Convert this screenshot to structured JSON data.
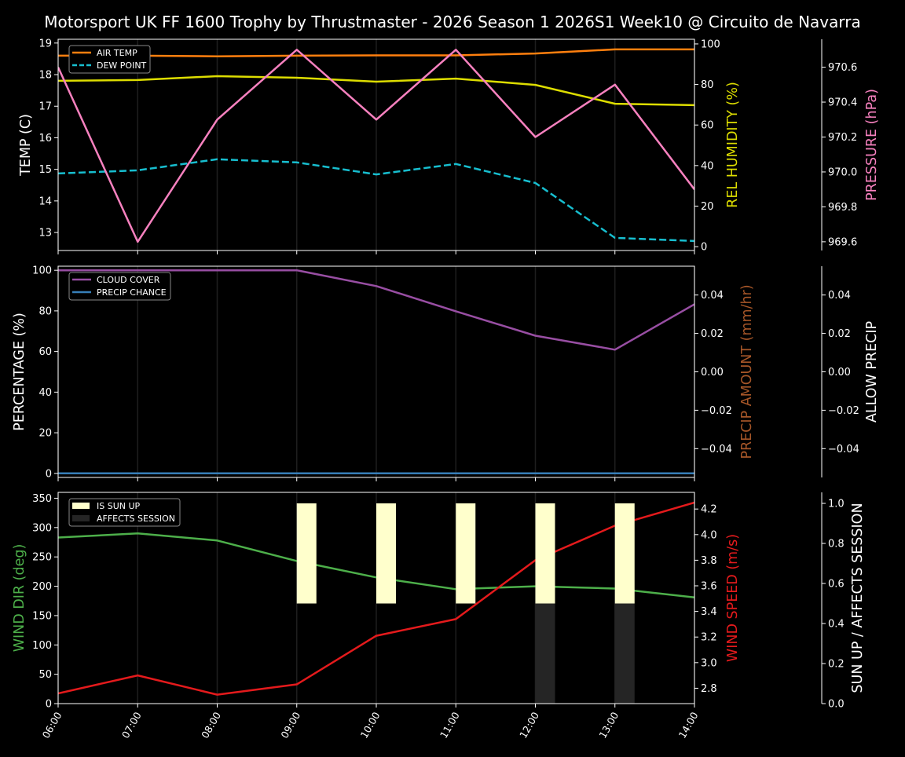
{
  "title": "Motorsport UK FF 1600 Trophy by Thrustmaster - 2026 Season 1 2026S1 Week10 @ Circuito de Navarra",
  "colors": {
    "background": "#000000",
    "foreground": "#ffffff",
    "air_temp": "#ff7f0e",
    "dew_point": "#17becf",
    "humidity": "#dddd00",
    "pressure": "#f781bf",
    "cloud": "#984ea3",
    "precip_chance": "#377eb8",
    "precip_amount": "#a65628",
    "wind_dir": "#4daf4a",
    "wind_speed": "#e41a1c",
    "sun_up": "#ffffcc",
    "affects_session": "#252525"
  },
  "chart_data": [
    {
      "type": "line",
      "x": [
        "06:00",
        "07:00",
        "08:00",
        "09:00",
        "10:00",
        "11:00",
        "12:00",
        "13:00",
        "14:00"
      ],
      "axes": [
        {
          "side": "left",
          "label": "TEMP (C)",
          "label_color": "#ffffff",
          "ylim": [
            12.43,
            19.12
          ],
          "ticks": [
            13,
            14,
            15,
            16,
            17,
            18,
            19
          ],
          "series": [
            {
              "name": "AIR TEMP",
              "color": "#ff7f0e",
              "dash": false,
              "values": [
                18.6,
                18.6,
                18.58,
                18.6,
                18.61,
                18.61,
                18.67,
                18.8,
                18.8
              ]
            },
            {
              "name": "DEW POINT",
              "color": "#17becf",
              "dash": true,
              "values": [
                14.87,
                14.97,
                15.32,
                15.22,
                14.84,
                15.17,
                14.57,
                12.83,
                12.73
              ]
            }
          ]
        },
        {
          "side": "right",
          "label": "REL HUMIDITY (%)",
          "label_color": "#dddd00",
          "ylim": [
            -1.9,
            102.3
          ],
          "ticks": [
            0,
            20,
            40,
            60,
            80,
            100
          ],
          "series": [
            {
              "color": "#dddd00",
              "dash": false,
              "values": [
                81.8,
                82.2,
                84.1,
                83.3,
                81.4,
                82.9,
                79.8,
                70.5,
                69.8
              ]
            }
          ]
        },
        {
          "side": "right2",
          "label": "PRESSURE (hPa)",
          "label_color": "#f781bf",
          "ylim": [
            969.55,
            970.76
          ],
          "ticks": [
            969.6,
            969.8,
            970.0,
            970.2,
            970.4,
            970.6
          ],
          "tick_decimals": 1,
          "series": [
            {
              "color": "#f781bf",
              "dash": false,
              "values": [
                970.6,
                969.6,
                970.3,
                970.7,
                970.3,
                970.7,
                970.2,
                970.5,
                969.9
              ]
            }
          ]
        }
      ],
      "legend": {
        "placement": "upper-left",
        "entries": [
          "AIR TEMP",
          "DEW POINT"
        ]
      }
    },
    {
      "type": "line",
      "x": [
        "06:00",
        "07:00",
        "08:00",
        "09:00",
        "10:00",
        "11:00",
        "12:00",
        "13:00",
        "14:00"
      ],
      "axes": [
        {
          "side": "left",
          "label": "PERCENTAGE (%)",
          "label_color": "#ffffff",
          "ylim": [
            -2,
            102
          ],
          "ticks": [
            0,
            20,
            40,
            60,
            80,
            100
          ],
          "series": [
            {
              "name": "CLOUD COVER",
              "color": "#984ea3",
              "dash": false,
              "values": [
                100,
                100,
                100,
                100,
                92.2,
                79.8,
                67.8,
                60.9,
                83.3
              ]
            },
            {
              "name": "PRECIP CHANCE",
              "color": "#377eb8",
              "dash": false,
              "values": [
                0,
                0,
                0,
                0,
                0,
                0,
                0,
                0,
                0
              ]
            }
          ]
        },
        {
          "side": "right",
          "label": "PRECIP AMOUNT (mm/hr)",
          "label_color": "#a65628",
          "ylim": [
            -0.055,
            0.055
          ],
          "ticks": [
            -0.04,
            -0.02,
            0.0,
            0.02,
            0.04
          ],
          "tick_decimals": 2,
          "series": []
        },
        {
          "side": "right2",
          "label": "ALLOW PRECIP",
          "label_color": "#ffffff",
          "ylim": [
            -0.055,
            0.055
          ],
          "ticks": [
            -0.04,
            -0.02,
            0.0,
            0.02,
            0.04
          ],
          "tick_decimals": 2,
          "series": []
        }
      ],
      "legend": {
        "placement": "upper-left",
        "entries": [
          "CLOUD COVER",
          "PRECIP CHANCE"
        ]
      }
    },
    {
      "type": "line",
      "x": [
        "06:00",
        "07:00",
        "08:00",
        "09:00",
        "10:00",
        "11:00",
        "12:00",
        "13:00",
        "14:00"
      ],
      "axes": [
        {
          "side": "left",
          "label": "WIND DIR (deg)",
          "label_color": "#4daf4a",
          "ylim": [
            0,
            360
          ],
          "ticks": [
            0,
            50,
            100,
            150,
            200,
            250,
            300,
            350
          ],
          "series": [
            {
              "color": "#4daf4a",
              "dash": false,
              "values": [
                283,
                290,
                278,
                243,
                215,
                195,
                200,
                196,
                181
              ]
            }
          ]
        },
        {
          "side": "right",
          "label": "WIND SPEED (m/s)",
          "label_color": "#e41a1c",
          "ylim": [
            2.68,
            4.33
          ],
          "ticks": [
            2.8,
            3.0,
            3.2,
            3.4,
            3.6,
            3.8,
            4.0,
            4.2
          ],
          "tick_decimals": 1,
          "series": [
            {
              "color": "#e41a1c",
              "dash": false,
              "values": [
                2.76,
                2.9,
                2.75,
                2.83,
                3.21,
                3.34,
                3.8,
                4.07,
                4.25
              ]
            }
          ]
        },
        {
          "side": "right2",
          "label": "SUN UP / AFFECTS SESSION",
          "label_color": "#ffffff",
          "ylim": [
            0,
            1.055
          ],
          "ticks": [
            0.0,
            0.2,
            0.4,
            0.6,
            0.8,
            1.0
          ],
          "tick_decimals": 1,
          "bars": [
            {
              "name": "IS SUN UP",
              "color": "#ffffcc",
              "values": [
                0,
                0,
                0,
                1,
                1,
                1,
                1,
                1,
                1
              ]
            },
            {
              "name": "AFFECTS SESSION",
              "color": "#252525",
              "values": [
                0,
                0,
                0,
                0,
                0,
                0,
                1,
                1,
                1
              ]
            }
          ]
        }
      ],
      "legend": {
        "placement": "upper-left",
        "entries": [
          "IS SUN UP",
          "AFFECTS SESSION"
        ]
      }
    }
  ]
}
